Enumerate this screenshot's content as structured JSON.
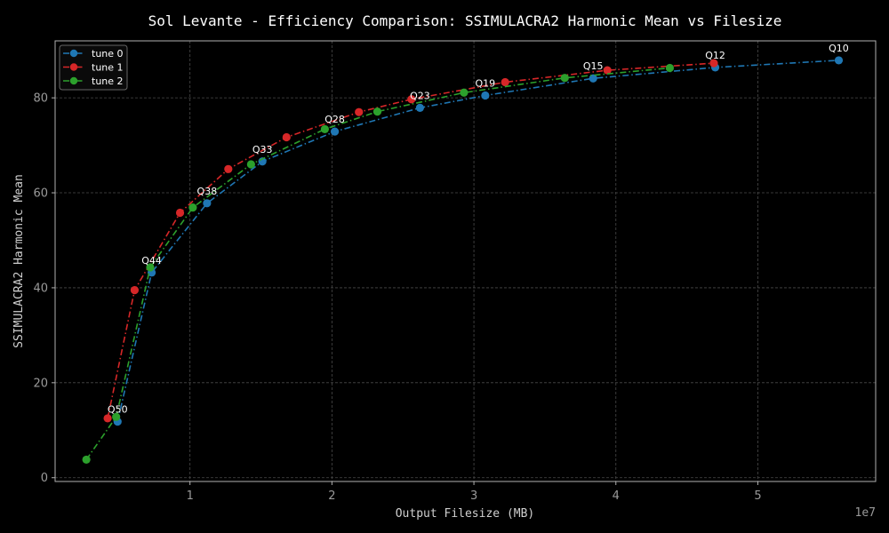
{
  "chart_data": {
    "type": "line",
    "title": "Sol Levante - Efficiency Comparison: SSIMULACRA2 Harmonic Mean vs Filesize",
    "xlabel": "Output Filesize (MB)",
    "ylabel": "SSIMULACRA2 Harmonic Mean",
    "x_offset_label": "1e7",
    "xlim": [
      0.05,
      5.83
    ],
    "ylim": [
      -0.8,
      92
    ],
    "x_ticks": [
      1,
      2,
      3,
      4,
      5
    ],
    "x_tick_labels": [
      "1",
      "2",
      "3",
      "4",
      "5"
    ],
    "y_ticks": [
      0,
      20,
      40,
      60,
      80
    ],
    "y_tick_labels": [
      "0",
      "20",
      "40",
      "60",
      "80"
    ],
    "grid": true,
    "legend": "top-left",
    "series": [
      {
        "name": "tune 0",
        "color": "#1f77b4",
        "x": [
          0.49,
          0.73,
          1.12,
          1.51,
          2.02,
          2.62,
          3.08,
          3.84,
          4.7,
          5.57
        ],
        "y": [
          11.8,
          43.2,
          57.8,
          66.6,
          72.9,
          77.9,
          80.5,
          84.1,
          86.4,
          87.9
        ]
      },
      {
        "name": "tune 1",
        "color": "#d62728",
        "x": [
          0.42,
          0.61,
          0.93,
          1.27,
          1.68,
          2.19,
          2.56,
          3.22,
          3.94,
          4.69
        ],
        "y": [
          12.5,
          39.5,
          55.8,
          65.0,
          71.7,
          77.0,
          79.7,
          83.3,
          85.8,
          87.3
        ]
      },
      {
        "name": "tune 2",
        "color": "#2ca02c",
        "x": [
          0.27,
          0.48,
          0.72,
          1.02,
          1.43,
          1.95,
          2.32,
          2.93,
          3.64,
          4.38
        ],
        "y": [
          3.8,
          12.8,
          44.3,
          56.9,
          66.0,
          73.4,
          77.1,
          81.1,
          84.2,
          86.3
        ]
      }
    ],
    "annotations": [
      {
        "text": "Q50",
        "x": 0.49,
        "y": 11.8
      },
      {
        "text": "Q44",
        "x": 0.73,
        "y": 43.2
      },
      {
        "text": "Q38",
        "x": 1.12,
        "y": 57.8
      },
      {
        "text": "Q33",
        "x": 1.51,
        "y": 66.6
      },
      {
        "text": "Q28",
        "x": 2.02,
        "y": 72.9
      },
      {
        "text": "Q23",
        "x": 2.62,
        "y": 77.9
      },
      {
        "text": "Q19",
        "x": 3.08,
        "y": 80.5
      },
      {
        "text": "Q15",
        "x": 3.84,
        "y": 84.1
      },
      {
        "text": "Q12",
        "x": 4.7,
        "y": 86.4
      },
      {
        "text": "Q10",
        "x": 5.57,
        "y": 87.9
      }
    ]
  }
}
